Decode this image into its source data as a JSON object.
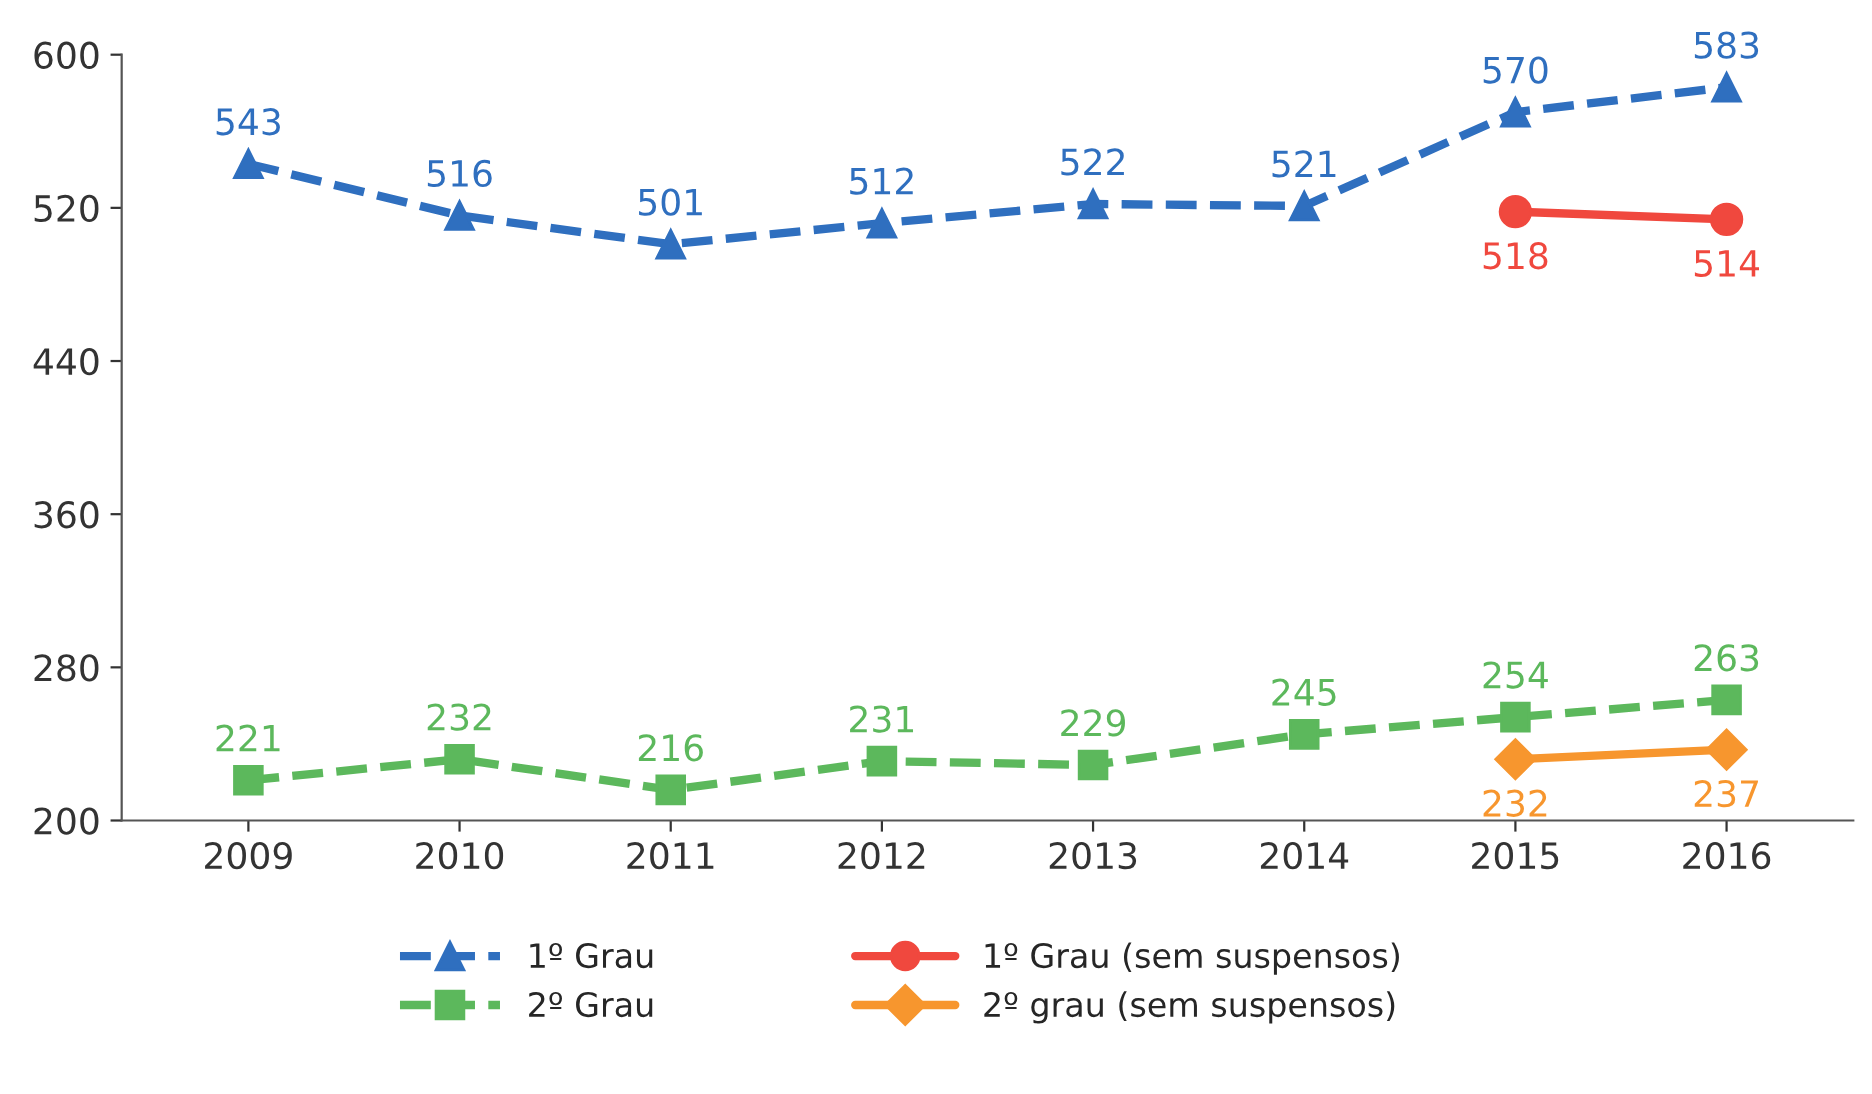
{
  "chart_data": {
    "type": "line",
    "categories": [
      "2009",
      "2010",
      "2011",
      "2012",
      "2013",
      "2014",
      "2015",
      "2016"
    ],
    "series": [
      {
        "name": "1º Grau",
        "color": "#2f6fbf",
        "values": [
          543,
          516,
          501,
          512,
          522,
          521,
          570,
          583
        ],
        "marker": "triangle",
        "line_style": "dashed"
      },
      {
        "name": "2º Grau",
        "color": "#5cb85c",
        "values": [
          221,
          232,
          216,
          231,
          229,
          245,
          254,
          263
        ],
        "marker": "square",
        "line_style": "dashed"
      },
      {
        "name": "1º Grau (sem suspensos)",
        "color": "#f0483e",
        "values": [
          null,
          null,
          null,
          null,
          null,
          null,
          518,
          514
        ],
        "marker": "circle",
        "line_style": "solid"
      },
      {
        "name": "2º grau (sem suspensos)",
        "color": "#f7962e",
        "values": [
          null,
          null,
          null,
          null,
          null,
          null,
          232,
          237
        ],
        "marker": "diamond",
        "line_style": "solid"
      }
    ],
    "ylim": [
      200,
      600
    ],
    "yticks": [
      200,
      280,
      360,
      440,
      520,
      600
    ],
    "grid": false,
    "legend": "bottom",
    "data_labels": true
  }
}
